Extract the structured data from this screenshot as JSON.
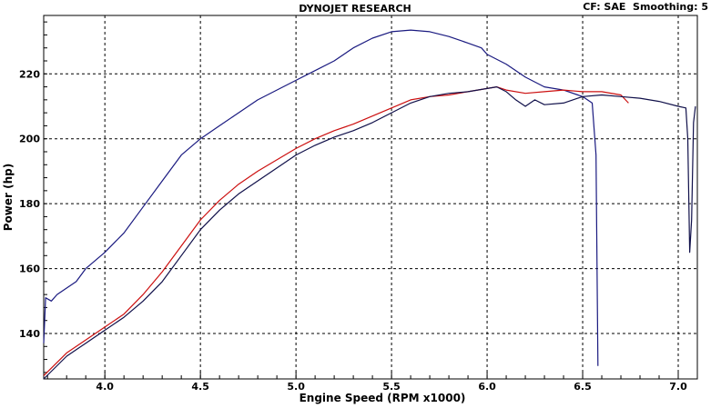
{
  "header": {
    "title": "DYNOJET RESEARCH",
    "info": "CF: SAE  Smoothing: 5"
  },
  "chart_data": {
    "type": "line",
    "title": "DYNOJET RESEARCH",
    "xlabel": "Engine Speed (RPM x1000)",
    "ylabel": "Power (hp)",
    "xlim": [
      3.68,
      7.1
    ],
    "ylim": [
      126,
      238
    ],
    "x_ticks": [
      "4.0",
      "4.5",
      "5.0",
      "5.5",
      "6.0",
      "6.5",
      "7.0"
    ],
    "y_ticks": [
      "140",
      "160",
      "180",
      "200",
      "220"
    ],
    "grid": true,
    "legend": "none",
    "series": [
      {
        "color": "#1a1a80",
        "points": [
          [
            3.68,
            137
          ],
          [
            3.69,
            151
          ],
          [
            3.72,
            150
          ],
          [
            3.75,
            152
          ],
          [
            3.8,
            154
          ],
          [
            3.85,
            156
          ],
          [
            3.9,
            160
          ],
          [
            4.0,
            165
          ],
          [
            4.1,
            171
          ],
          [
            4.2,
            179
          ],
          [
            4.3,
            187
          ],
          [
            4.4,
            195
          ],
          [
            4.5,
            200
          ],
          [
            4.6,
            204
          ],
          [
            4.7,
            208
          ],
          [
            4.8,
            212
          ],
          [
            4.9,
            215
          ],
          [
            5.0,
            218
          ],
          [
            5.1,
            221
          ],
          [
            5.2,
            224
          ],
          [
            5.3,
            228
          ],
          [
            5.4,
            231
          ],
          [
            5.5,
            233
          ],
          [
            5.6,
            233.5
          ],
          [
            5.7,
            233
          ],
          [
            5.8,
            231.5
          ],
          [
            5.9,
            229.5
          ],
          [
            5.97,
            228
          ],
          [
            6.0,
            226
          ],
          [
            6.1,
            223
          ],
          [
            6.2,
            219
          ],
          [
            6.3,
            216
          ],
          [
            6.4,
            215
          ],
          [
            6.5,
            213
          ],
          [
            6.55,
            211
          ],
          [
            6.57,
            195
          ],
          [
            6.58,
            130
          ]
        ]
      },
      {
        "color": "#cc1010",
        "points": [
          [
            3.68,
            127
          ],
          [
            3.8,
            134
          ],
          [
            3.9,
            138
          ],
          [
            4.0,
            142
          ],
          [
            4.1,
            146
          ],
          [
            4.2,
            152
          ],
          [
            4.3,
            159
          ],
          [
            4.4,
            167
          ],
          [
            4.5,
            175
          ],
          [
            4.6,
            181
          ],
          [
            4.7,
            186
          ],
          [
            4.8,
            190
          ],
          [
            4.9,
            193.5
          ],
          [
            5.0,
            197
          ],
          [
            5.1,
            200
          ],
          [
            5.2,
            202.5
          ],
          [
            5.3,
            204.5
          ],
          [
            5.4,
            207
          ],
          [
            5.5,
            209.5
          ],
          [
            5.6,
            212
          ],
          [
            5.7,
            213
          ],
          [
            5.8,
            213.5
          ],
          [
            5.9,
            214.5
          ],
          [
            6.0,
            215.5
          ],
          [
            6.05,
            216
          ],
          [
            6.1,
            215
          ],
          [
            6.2,
            214
          ],
          [
            6.3,
            214.5
          ],
          [
            6.4,
            215
          ],
          [
            6.5,
            214.5
          ],
          [
            6.6,
            214.5
          ],
          [
            6.7,
            213.5
          ],
          [
            6.74,
            211
          ]
        ]
      },
      {
        "color": "#10104a",
        "points": [
          [
            3.68,
            126
          ],
          [
            3.8,
            133
          ],
          [
            3.9,
            137
          ],
          [
            4.0,
            141
          ],
          [
            4.1,
            145
          ],
          [
            4.2,
            150
          ],
          [
            4.3,
            156
          ],
          [
            4.4,
            164
          ],
          [
            4.5,
            172
          ],
          [
            4.6,
            178
          ],
          [
            4.7,
            183
          ],
          [
            4.8,
            187
          ],
          [
            4.9,
            191
          ],
          [
            5.0,
            195
          ],
          [
            5.1,
            198
          ],
          [
            5.2,
            200.5
          ],
          [
            5.3,
            202.5
          ],
          [
            5.4,
            205
          ],
          [
            5.5,
            208
          ],
          [
            5.6,
            211
          ],
          [
            5.7,
            213
          ],
          [
            5.8,
            214
          ],
          [
            5.9,
            214.5
          ],
          [
            6.0,
            215.5
          ],
          [
            6.05,
            216
          ],
          [
            6.1,
            214.5
          ],
          [
            6.15,
            212
          ],
          [
            6.2,
            210
          ],
          [
            6.25,
            212
          ],
          [
            6.3,
            210.5
          ],
          [
            6.4,
            211
          ],
          [
            6.5,
            213
          ],
          [
            6.6,
            213.5
          ],
          [
            6.7,
            213
          ],
          [
            6.8,
            212.5
          ],
          [
            6.9,
            211.5
          ],
          [
            7.0,
            210
          ],
          [
            7.04,
            209.5
          ],
          [
            7.05,
            200
          ],
          [
            7.06,
            165
          ],
          [
            7.07,
            175
          ],
          [
            7.08,
            205
          ],
          [
            7.09,
            210
          ]
        ]
      }
    ]
  }
}
